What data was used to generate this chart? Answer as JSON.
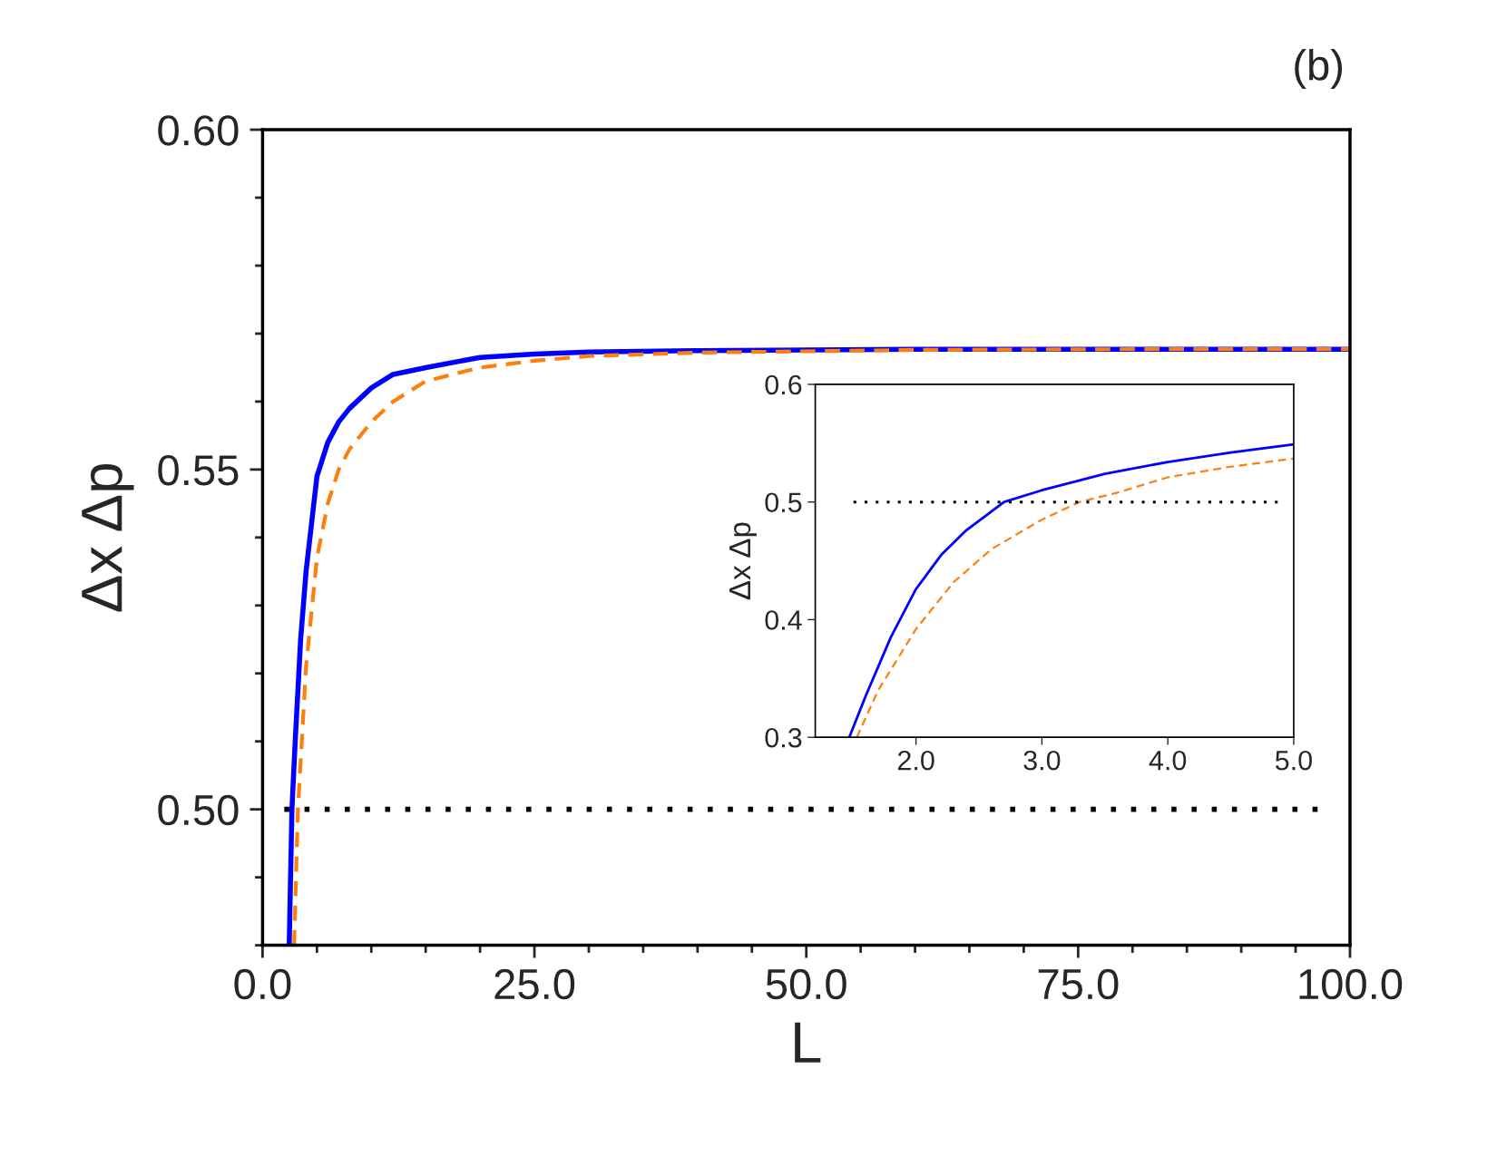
{
  "chart_data": [
    {
      "type": "line",
      "xlabel": "L",
      "ylabel": "Δx Δp",
      "annotations": [
        "(b)"
      ],
      "xlim": [
        0,
        100
      ],
      "ylim": [
        0.48,
        0.6
      ],
      "xticks": [
        {
          "value": 0,
          "label": "0.0"
        },
        {
          "value": 5,
          "label": null
        },
        {
          "value": 10,
          "label": null
        },
        {
          "value": 15,
          "label": null
        },
        {
          "value": 20,
          "label": null
        },
        {
          "value": 25,
          "label": "25.0"
        },
        {
          "value": 30,
          "label": null
        },
        {
          "value": 35,
          "label": null
        },
        {
          "value": 40,
          "label": null
        },
        {
          "value": 45,
          "label": null
        },
        {
          "value": 50,
          "label": "50.0"
        },
        {
          "value": 55,
          "label": null
        },
        {
          "value": 60,
          "label": null
        },
        {
          "value": 65,
          "label": null
        },
        {
          "value": 70,
          "label": null
        },
        {
          "value": 75,
          "label": "75.0"
        },
        {
          "value": 80,
          "label": null
        },
        {
          "value": 85,
          "label": null
        },
        {
          "value": 90,
          "label": null
        },
        {
          "value": 95,
          "label": null
        },
        {
          "value": 100,
          "label": "100.0"
        }
      ],
      "yticks": [
        {
          "value": 0.48,
          "label": null
        },
        {
          "value": 0.49,
          "label": null
        },
        {
          "value": 0.5,
          "label": "0.50"
        },
        {
          "value": 0.51,
          "label": null
        },
        {
          "value": 0.52,
          "label": null
        },
        {
          "value": 0.53,
          "label": null
        },
        {
          "value": 0.54,
          "label": null
        },
        {
          "value": 0.55,
          "label": "0.55"
        },
        {
          "value": 0.56,
          "label": null
        },
        {
          "value": 0.57,
          "label": null
        },
        {
          "value": 0.58,
          "label": null
        },
        {
          "value": 0.59,
          "label": null
        },
        {
          "value": 0.6,
          "label": "0.60"
        }
      ],
      "grid": false,
      "legend": false,
      "ref_lines": [
        {
          "axis": "y",
          "value": 0.5,
          "color": "#000000",
          "line_style": "dotted"
        }
      ],
      "series": [
        {
          "color": "#0000ff",
          "line_style": "solid",
          "x": [
            2.45,
            2.7,
            3,
            3.5,
            4,
            5,
            6,
            7,
            8,
            10,
            12,
            15,
            20,
            25,
            30,
            40,
            60,
            80,
            100
          ],
          "values": [
            0.48,
            0.5,
            0.51,
            0.525,
            0.535,
            0.549,
            0.554,
            0.557,
            0.559,
            0.562,
            0.564,
            0.565,
            0.5665,
            0.567,
            0.5673,
            0.5675,
            0.5677,
            0.5677,
            0.5677
          ]
        },
        {
          "color": "#ff7f0e",
          "line_style": "dashed",
          "x": [
            2.9,
            3.25,
            4,
            5,
            6,
            7,
            8,
            10,
            12,
            15,
            20,
            25,
            30,
            40,
            60,
            80,
            100
          ],
          "values": [
            0.48,
            0.5,
            0.521,
            0.537,
            0.545,
            0.55,
            0.553,
            0.557,
            0.56,
            0.563,
            0.565,
            0.566,
            0.5667,
            0.5672,
            0.5676,
            0.5677,
            0.5677
          ]
        }
      ]
    },
    {
      "type": "line",
      "ylabel": "Δx Δp",
      "xlim": [
        1.2,
        5.0
      ],
      "ylim": [
        0.3,
        0.6
      ],
      "xticks": [
        {
          "value": 2,
          "label": "2.0"
        },
        {
          "value": 3,
          "label": "3.0"
        },
        {
          "value": 4,
          "label": "4.0"
        },
        {
          "value": 5,
          "label": "5.0"
        }
      ],
      "yticks": [
        {
          "value": 0.3,
          "label": "0.3"
        },
        {
          "value": 0.4,
          "label": "0.4"
        },
        {
          "value": 0.5,
          "label": "0.5"
        },
        {
          "value": 0.6,
          "label": "0.6"
        }
      ],
      "grid": false,
      "legend": false,
      "ref_lines": [
        {
          "axis": "y",
          "value": 0.5,
          "color": "#000000",
          "line_style": "dotted"
        }
      ],
      "series": [
        {
          "color": "#0000ff",
          "line_style": "solid",
          "x": [
            1.47,
            1.6,
            1.8,
            2.0,
            2.2,
            2.4,
            2.7,
            3.0,
            3.5,
            4.0,
            4.5,
            5.0
          ],
          "values": [
            0.3,
            0.335,
            0.385,
            0.426,
            0.455,
            0.476,
            0.5,
            0.51,
            0.524,
            0.534,
            0.542,
            0.549
          ]
        },
        {
          "color": "#ff7f0e",
          "line_style": "dashed",
          "x": [
            1.53,
            1.7,
            2.0,
            2.3,
            2.6,
            3.0,
            3.3,
            3.6,
            4.0,
            4.5,
            5.0
          ],
          "values": [
            0.3,
            0.34,
            0.392,
            0.432,
            0.46,
            0.485,
            0.5,
            0.508,
            0.521,
            0.53,
            0.537
          ]
        }
      ]
    }
  ]
}
